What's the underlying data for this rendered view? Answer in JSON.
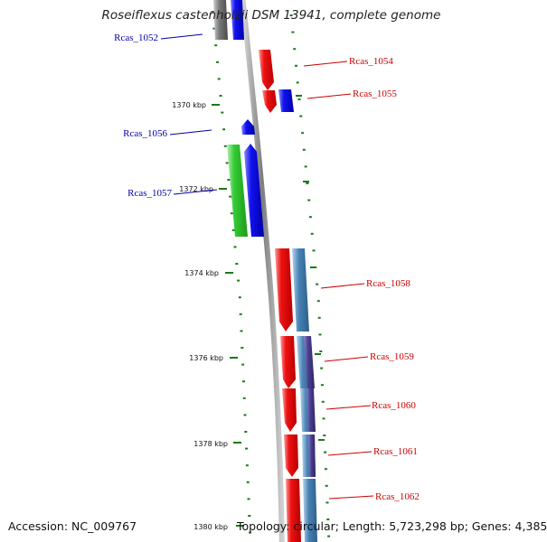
{
  "title": "Roseiflexus castenholzii DSM 13941, complete genome",
  "accession_text": "Accession: NC_009767",
  "topology_text": "Topology: circular; Length: 5,723,298 bp; Genes: 4,385",
  "colors": {
    "backbone": "#8a8a8a",
    "tick": "#1a7a1a",
    "gene_red": "#ee1111",
    "gene_blue": "#1111ee",
    "gene_green": "#33cc33",
    "gene_steel": "#4682b4",
    "gene_purple": "#4b3f8f",
    "gene_grey": "#7a7a7a",
    "label_blue": "#0000aa",
    "label_red": "#cc0000"
  },
  "ticks": [
    "1370 kbp",
    "1372 kbp",
    "1374 kbp",
    "1376 kbp",
    "1378 kbp",
    "1380 kbp"
  ],
  "gene_labels": [
    {
      "name": "Rcas_1052",
      "side": "left",
      "color": "blue"
    },
    {
      "name": "Rcas_1054",
      "side": "right",
      "color": "red"
    },
    {
      "name": "Rcas_1055",
      "side": "right",
      "color": "red"
    },
    {
      "name": "Rcas_1056",
      "side": "left",
      "color": "blue"
    },
    {
      "name": "Rcas_1057",
      "side": "left",
      "color": "blue"
    },
    {
      "name": "Rcas_1058",
      "side": "right",
      "color": "red"
    },
    {
      "name": "Rcas_1059",
      "side": "right",
      "color": "red"
    },
    {
      "name": "Rcas_1060",
      "side": "right",
      "color": "red"
    },
    {
      "name": "Rcas_1061",
      "side": "right",
      "color": "red"
    },
    {
      "name": "Rcas_1062",
      "side": "right",
      "color": "red"
    }
  ]
}
